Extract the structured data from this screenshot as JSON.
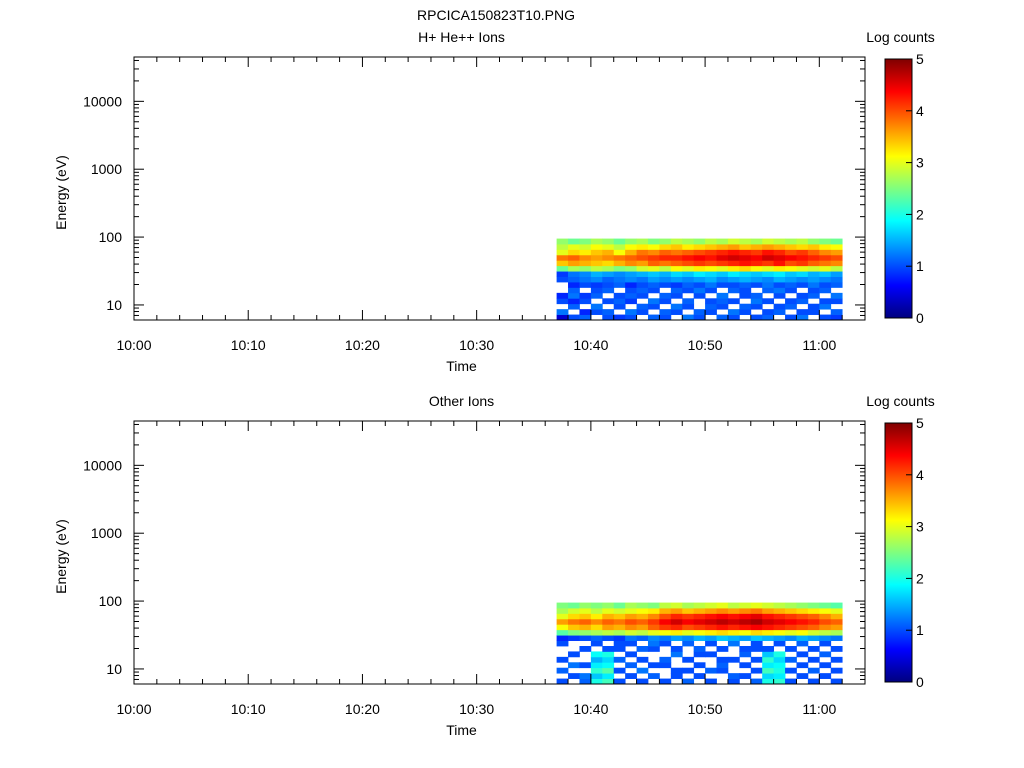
{
  "page_title": "RPCICA150823T10.PNG",
  "colorbar_stops": [
    "#00007f",
    "#0000ff",
    "#007fff",
    "#00ffff",
    "#7fff7f",
    "#ffff00",
    "#ff7f00",
    "#ff0000",
    "#7f0000"
  ],
  "chart_data": [
    {
      "type": "heatmap",
      "title": "H+ He++ Ions",
      "xlabel": "Time",
      "ylabel": "Energy (eV)",
      "x_ticks": [
        "10:00",
        "10:10",
        "10:20",
        "10:30",
        "10:40",
        "10:50",
        "11:00"
      ],
      "y_ticks": [
        "10",
        "100",
        "1000",
        "10000"
      ],
      "y_scale": "log",
      "ylim": [
        6,
        45000
      ],
      "xlim_minutes": [
        0,
        64
      ],
      "colorbar": {
        "label": "Log counts",
        "ticks": [
          "0",
          "1",
          "2",
          "3",
          "4",
          "5"
        ],
        "range": [
          0,
          5
        ]
      },
      "data_time_range_minutes": [
        37,
        62
      ],
      "time_bins": 25,
      "energy_bins": 15,
      "energy_range_ev": [
        6,
        95
      ],
      "profile": [
        [
          0.4,
          1.2,
          0.0,
          1.0,
          0.8,
          0.0,
          0.0,
          1.0,
          0.9,
          2.4,
          3.4,
          3.8,
          3.0,
          2.8,
          2.6
        ],
        [
          1.0,
          0.0,
          1.1,
          0.8,
          1.2,
          1.1,
          0.8,
          1.1,
          1.2,
          2.7,
          3.6,
          3.9,
          3.3,
          3.0,
          2.4
        ],
        [
          1.1,
          0.8,
          0.0,
          1.0,
          0.9,
          0.0,
          1.0,
          1.2,
          1.3,
          2.6,
          3.5,
          3.7,
          3.2,
          2.9,
          2.5
        ],
        [
          0.0,
          1.0,
          1.2,
          0.0,
          1.1,
          1.0,
          0.9,
          1.3,
          1.5,
          2.8,
          3.4,
          3.6,
          3.4,
          3.1,
          2.7
        ],
        [
          1.0,
          1.1,
          0.0,
          1.0,
          0.0,
          1.1,
          1.0,
          1.1,
          1.4,
          2.7,
          3.3,
          3.7,
          3.5,
          3.0,
          2.6
        ],
        [
          0.9,
          0.0,
          1.0,
          1.1,
          1.0,
          0.0,
          1.1,
          1.2,
          1.3,
          2.5,
          3.5,
          3.8,
          3.1,
          2.8,
          2.4
        ],
        [
          1.0,
          1.2,
          0.0,
          0.9,
          1.1,
          1.0,
          0.8,
          1.3,
          1.4,
          2.6,
          3.7,
          3.9,
          3.5,
          3.1,
          2.6
        ],
        [
          0.0,
          1.0,
          1.1,
          0.0,
          1.0,
          1.1,
          1.0,
          1.2,
          1.5,
          2.9,
          3.6,
          4.0,
          3.8,
          3.2,
          2.7
        ],
        [
          1.1,
          0.0,
          1.0,
          1.2,
          0.0,
          1.0,
          1.1,
          1.4,
          1.6,
          3.0,
          3.9,
          4.1,
          3.7,
          3.1,
          2.5
        ],
        [
          1.0,
          1.1,
          0.0,
          1.0,
          1.1,
          0.0,
          1.0,
          1.3,
          1.5,
          2.8,
          3.8,
          4.2,
          3.9,
          3.3,
          2.6
        ],
        [
          0.0,
          1.0,
          1.2,
          0.0,
          1.0,
          1.1,
          0.9,
          1.4,
          1.7,
          3.1,
          3.9,
          4.2,
          3.8,
          3.4,
          2.8
        ],
        [
          1.2,
          0.0,
          1.0,
          1.1,
          0.0,
          1.0,
          1.1,
          1.3,
          1.6,
          3.0,
          4.0,
          4.3,
          3.9,
          3.2,
          2.7
        ],
        [
          1.0,
          1.1,
          0.0,
          0.0,
          1.0,
          1.2,
          1.0,
          1.4,
          1.8,
          3.2,
          4.1,
          4.4,
          4.0,
          3.3,
          2.6
        ],
        [
          0.0,
          1.0,
          1.1,
          1.0,
          0.0,
          1.0,
          1.2,
          1.5,
          1.7,
          3.1,
          4.0,
          4.3,
          4.1,
          3.4,
          2.8
        ],
        [
          1.1,
          0.0,
          1.0,
          1.1,
          1.2,
          0.0,
          1.0,
          1.3,
          1.6,
          3.0,
          4.1,
          4.5,
          4.2,
          3.5,
          2.7
        ],
        [
          1.0,
          1.2,
          0.0,
          1.0,
          0.0,
          1.1,
          1.0,
          1.4,
          1.8,
          3.2,
          4.2,
          4.6,
          4.3,
          3.6,
          2.9
        ],
        [
          0.0,
          1.0,
          1.1,
          0.0,
          1.0,
          1.0,
          1.1,
          1.5,
          1.7,
          3.3,
          4.3,
          4.5,
          4.2,
          3.4,
          2.8
        ],
        [
          1.0,
          0.0,
          1.0,
          1.2,
          1.1,
          0.0,
          1.0,
          1.4,
          1.6,
          3.1,
          4.2,
          4.4,
          4.1,
          3.5,
          2.7
        ],
        [
          1.1,
          1.0,
          0.0,
          1.0,
          0.0,
          1.1,
          1.2,
          1.3,
          1.7,
          3.0,
          4.1,
          4.6,
          4.3,
          3.6,
          2.9
        ],
        [
          0.0,
          1.1,
          1.0,
          0.0,
          1.0,
          1.2,
          1.0,
          1.5,
          1.8,
          3.2,
          4.3,
          4.5,
          4.2,
          3.5,
          2.8
        ],
        [
          1.0,
          0.0,
          1.1,
          1.0,
          0.0,
          1.0,
          1.1,
          1.4,
          1.6,
          3.1,
          4.0,
          4.4,
          4.0,
          3.4,
          2.7
        ],
        [
          1.2,
          1.0,
          0.0,
          1.1,
          1.0,
          0.0,
          1.0,
          1.3,
          1.7,
          3.0,
          4.1,
          4.3,
          4.1,
          3.3,
          2.8
        ],
        [
          0.0,
          1.0,
          1.0,
          0.0,
          1.1,
          1.0,
          1.2,
          1.4,
          1.5,
          2.9,
          3.9,
          4.2,
          3.9,
          3.4,
          2.6
        ],
        [
          1.0,
          0.0,
          1.2,
          1.0,
          0.0,
          1.1,
          1.0,
          1.3,
          1.6,
          3.0,
          3.8,
          4.1,
          3.7,
          3.2,
          2.5
        ],
        [
          0.9,
          1.1,
          0.0,
          1.0,
          1.2,
          0.0,
          1.1,
          1.2,
          1.4,
          2.8,
          3.7,
          4.0,
          3.6,
          3.1,
          2.4
        ]
      ]
    },
    {
      "type": "heatmap",
      "title": "Other Ions",
      "xlabel": "Time",
      "ylabel": "Energy (eV)",
      "x_ticks": [
        "10:00",
        "10:10",
        "10:20",
        "10:30",
        "10:40",
        "10:50",
        "11:00"
      ],
      "y_ticks": [
        "10",
        "100",
        "1000",
        "10000"
      ],
      "y_scale": "log",
      "ylim": [
        6,
        45000
      ],
      "xlim_minutes": [
        0,
        64
      ],
      "colorbar": {
        "label": "Log counts",
        "ticks": [
          "0",
          "1",
          "2",
          "3",
          "4",
          "5"
        ],
        "range": [
          0,
          5
        ]
      },
      "data_time_range_minutes": [
        37,
        62
      ],
      "time_bins": 25,
      "energy_bins": 15,
      "energy_range_ev": [
        6,
        95
      ],
      "profile": [
        [
          1.0,
          0.0,
          1.1,
          0.0,
          1.0,
          0.0,
          0.0,
          1.0,
          0.8,
          2.3,
          3.1,
          3.6,
          3.0,
          2.7,
          2.5
        ],
        [
          0.0,
          1.0,
          0.0,
          1.2,
          0.0,
          1.0,
          0.0,
          0.0,
          0.9,
          2.5,
          3.4,
          3.8,
          3.3,
          2.9,
          2.4
        ],
        [
          1.1,
          1.2,
          0.0,
          1.0,
          0.0,
          0.0,
          1.0,
          0.0,
          1.0,
          2.6,
          3.5,
          3.9,
          3.4,
          3.0,
          2.6
        ],
        [
          2.0,
          1.6,
          2.1,
          1.8,
          1.5,
          1.9,
          0.0,
          1.0,
          1.1,
          2.7,
          3.3,
          3.7,
          3.2,
          2.8,
          2.5
        ],
        [
          2.2,
          1.8,
          2.3,
          1.9,
          1.7,
          2.0,
          1.0,
          0.0,
          1.0,
          2.8,
          3.6,
          3.9,
          3.5,
          3.0,
          2.6
        ],
        [
          1.0,
          0.0,
          1.0,
          0.0,
          1.1,
          0.0,
          1.0,
          1.0,
          0.9,
          2.7,
          3.5,
          3.8,
          3.4,
          2.9,
          2.4
        ],
        [
          0.0,
          1.0,
          0.0,
          1.1,
          0.0,
          1.0,
          0.0,
          1.0,
          1.2,
          2.9,
          3.7,
          4.0,
          3.6,
          3.0,
          2.7
        ],
        [
          1.0,
          0.0,
          1.2,
          0.0,
          1.0,
          0.0,
          1.1,
          0.0,
          1.1,
          2.8,
          3.6,
          3.9,
          3.5,
          3.1,
          2.6
        ],
        [
          0.0,
          1.1,
          0.0,
          1.0,
          0.0,
          0.0,
          1.0,
          1.2,
          1.3,
          3.0,
          3.9,
          4.1,
          3.7,
          3.2,
          2.5
        ],
        [
          1.0,
          0.0,
          0.0,
          1.0,
          1.1,
          0.0,
          0.0,
          1.0,
          1.2,
          3.1,
          4.1,
          4.4,
          4.0,
          3.5,
          2.8
        ],
        [
          0.0,
          1.0,
          1.0,
          0.0,
          0.0,
          1.2,
          1.0,
          0.0,
          1.4,
          3.2,
          4.2,
          4.6,
          4.2,
          3.6,
          2.9
        ],
        [
          1.1,
          0.0,
          1.0,
          0.0,
          1.0,
          0.0,
          0.0,
          1.1,
          1.3,
          3.0,
          4.0,
          4.4,
          4.1,
          3.4,
          2.7
        ],
        [
          0.0,
          1.0,
          0.0,
          1.0,
          0.0,
          1.0,
          1.1,
          0.0,
          1.5,
          3.1,
          4.1,
          4.5,
          4.2,
          3.5,
          2.8
        ],
        [
          1.0,
          0.0,
          1.1,
          0.0,
          0.0,
          1.0,
          0.0,
          1.0,
          1.4,
          3.2,
          4.2,
          4.6,
          4.3,
          3.6,
          2.9
        ],
        [
          0.0,
          0.0,
          1.0,
          1.1,
          1.0,
          0.0,
          1.0,
          0.0,
          1.6,
          3.3,
          4.3,
          4.7,
          4.4,
          3.7,
          3.0
        ],
        [
          1.0,
          1.1,
          0.0,
          0.0,
          1.0,
          0.0,
          0.0,
          1.2,
          1.5,
          3.2,
          4.2,
          4.6,
          4.3,
          3.6,
          2.8
        ],
        [
          0.0,
          1.0,
          0.0,
          1.0,
          0.0,
          1.1,
          1.0,
          0.0,
          1.4,
          3.1,
          4.3,
          4.7,
          4.4,
          3.7,
          2.9
        ],
        [
          1.1,
          0.0,
          1.0,
          0.0,
          1.0,
          0.0,
          1.0,
          1.0,
          1.6,
          3.3,
          4.4,
          4.8,
          4.5,
          3.8,
          3.0
        ],
        [
          2.0,
          1.7,
          2.2,
          1.8,
          2.1,
          1.6,
          1.0,
          0.0,
          1.5,
          3.2,
          4.3,
          4.6,
          4.3,
          3.6,
          2.9
        ],
        [
          2.1,
          1.8,
          2.0,
          1.9,
          1.7,
          2.0,
          0.0,
          1.0,
          1.4,
          3.1,
          4.2,
          4.5,
          4.2,
          3.5,
          2.8
        ],
        [
          1.0,
          0.0,
          1.0,
          0.0,
          1.1,
          0.0,
          1.0,
          0.0,
          1.3,
          3.0,
          4.1,
          4.4,
          4.1,
          3.4,
          2.7
        ],
        [
          0.0,
          1.0,
          0.0,
          1.0,
          0.0,
          1.0,
          0.0,
          1.1,
          1.5,
          3.1,
          4.0,
          4.3,
          4.0,
          3.3,
          2.6
        ],
        [
          1.0,
          0.0,
          1.1,
          0.0,
          1.0,
          0.0,
          1.0,
          0.0,
          1.4,
          2.9,
          3.9,
          4.2,
          3.9,
          3.2,
          2.5
        ],
        [
          0.0,
          1.0,
          0.0,
          1.0,
          0.0,
          1.1,
          0.0,
          1.0,
          1.3,
          2.8,
          3.7,
          4.0,
          3.7,
          3.1,
          2.4
        ],
        [
          1.0,
          0.0,
          1.0,
          0.0,
          1.0,
          0.0,
          1.0,
          0.0,
          1.2,
          2.7,
          3.6,
          3.9,
          3.5,
          3.0,
          2.3
        ]
      ]
    }
  ]
}
